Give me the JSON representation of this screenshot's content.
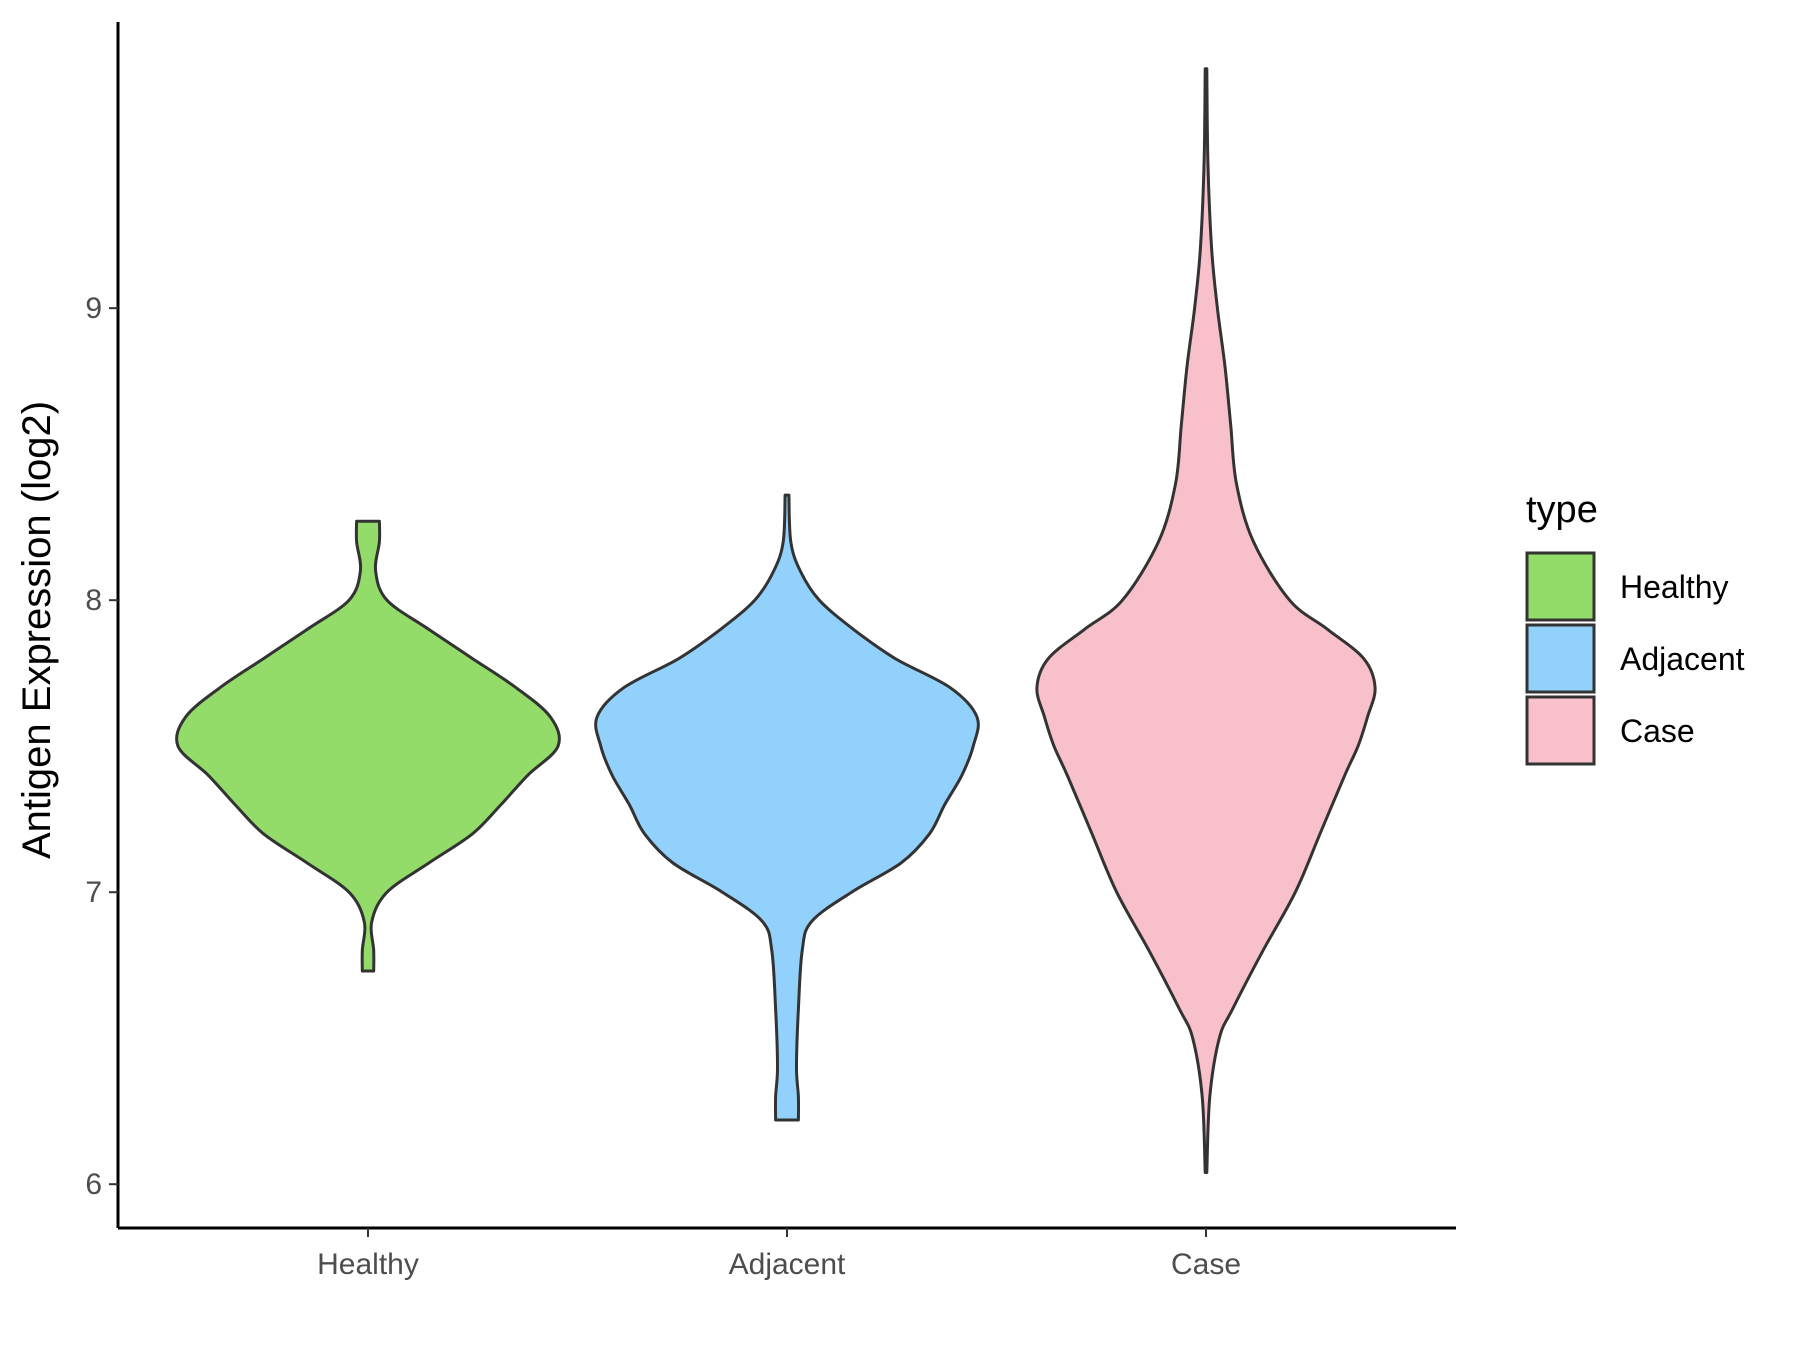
{
  "chart_data": {
    "type": "violin",
    "title": "",
    "xlabel": "",
    "ylabel": "Antigen Expression (log2)",
    "ylim": [
      5.85,
      9.98
    ],
    "yticks": [
      6,
      7,
      8,
      9
    ],
    "grid": false,
    "categories": [
      "Healthy",
      "Adjacent",
      "Case"
    ],
    "legend": {
      "title": "type",
      "position": "right",
      "entries": [
        "Healthy",
        "Adjacent",
        "Case"
      ]
    },
    "series": [
      {
        "name": "Healthy",
        "color": "#93dc69",
        "min": 6.73,
        "max": 8.27,
        "density": [
          [
            6.73,
            0.03
          ],
          [
            6.8,
            0.03
          ],
          [
            6.9,
            0.02
          ],
          [
            7.0,
            0.1
          ],
          [
            7.1,
            0.32
          ],
          [
            7.2,
            0.55
          ],
          [
            7.3,
            0.7
          ],
          [
            7.4,
            0.84
          ],
          [
            7.5,
            1.0
          ],
          [
            7.6,
            0.96
          ],
          [
            7.7,
            0.78
          ],
          [
            7.8,
            0.55
          ],
          [
            7.9,
            0.32
          ],
          [
            8.0,
            0.1
          ],
          [
            8.1,
            0.04
          ],
          [
            8.2,
            0.06
          ],
          [
            8.27,
            0.06
          ]
        ]
      },
      {
        "name": "Adjacent",
        "color": "#92d1fc",
        "min": 6.22,
        "max": 8.36,
        "density": [
          [
            6.22,
            0.06
          ],
          [
            6.3,
            0.06
          ],
          [
            6.4,
            0.05
          ],
          [
            6.6,
            0.06
          ],
          [
            6.8,
            0.08
          ],
          [
            6.9,
            0.13
          ],
          [
            7.0,
            0.34
          ],
          [
            7.1,
            0.6
          ],
          [
            7.2,
            0.75
          ],
          [
            7.3,
            0.83
          ],
          [
            7.4,
            0.92
          ],
          [
            7.5,
            0.98
          ],
          [
            7.6,
            1.0
          ],
          [
            7.7,
            0.86
          ],
          [
            7.8,
            0.57
          ],
          [
            7.9,
            0.35
          ],
          [
            8.0,
            0.17
          ],
          [
            8.1,
            0.07
          ],
          [
            8.2,
            0.02
          ],
          [
            8.36,
            0.01
          ]
        ]
      },
      {
        "name": "Case",
        "color": "#f7c0cb",
        "min": 6.04,
        "max": 9.82,
        "density": [
          [
            6.04,
            0.0
          ],
          [
            6.3,
            0.02
          ],
          [
            6.5,
            0.07
          ],
          [
            6.6,
            0.14
          ],
          [
            6.8,
            0.3
          ],
          [
            7.0,
            0.47
          ],
          [
            7.2,
            0.6
          ],
          [
            7.4,
            0.73
          ],
          [
            7.5,
            0.8
          ],
          [
            7.6,
            0.85
          ],
          [
            7.7,
            0.89
          ],
          [
            7.8,
            0.83
          ],
          [
            7.9,
            0.64
          ],
          [
            8.0,
            0.44
          ],
          [
            8.2,
            0.25
          ],
          [
            8.4,
            0.16
          ],
          [
            8.6,
            0.13
          ],
          [
            8.8,
            0.1
          ],
          [
            9.0,
            0.06
          ],
          [
            9.2,
            0.03
          ],
          [
            9.5,
            0.01
          ],
          [
            9.82,
            0.0
          ]
        ]
      }
    ]
  }
}
